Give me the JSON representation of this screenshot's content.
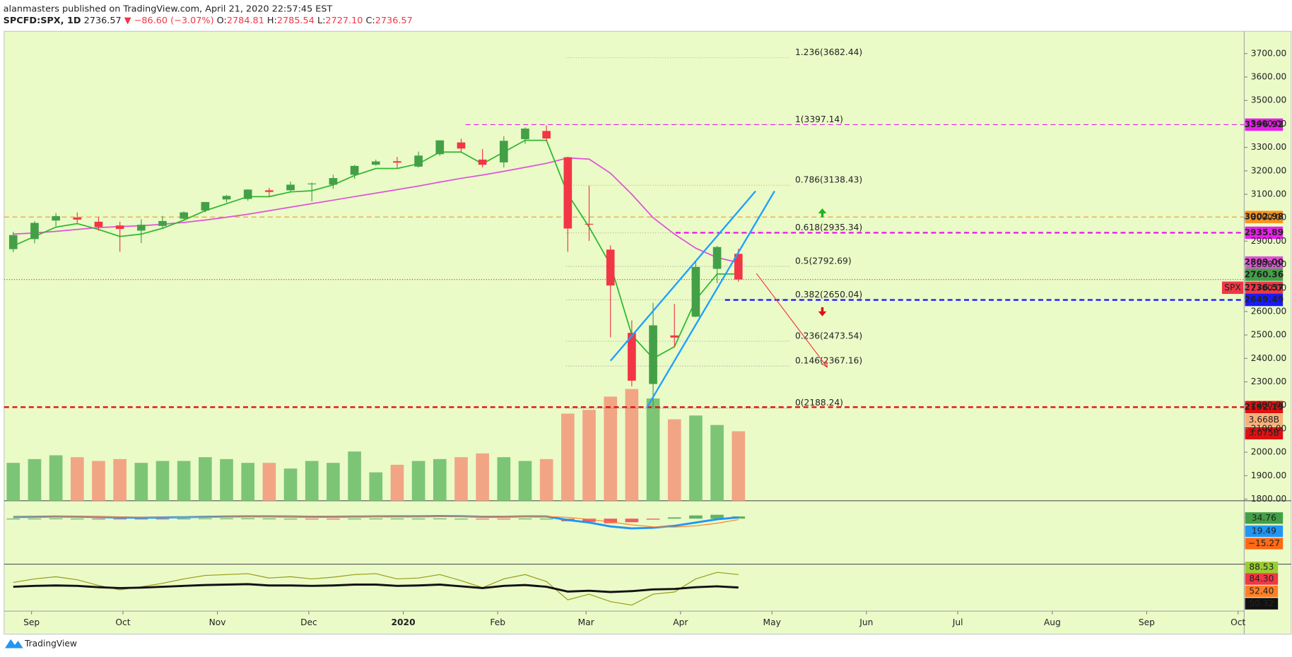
{
  "header": {
    "publisher": "alanmasters published on TradingView.com, April 21, 2020 22:57:45 EST",
    "symbol": "SPCFD:SPX, 1D",
    "last": "2736.57",
    "direction": "▼",
    "change": "−86.60 (−3.07%)",
    "ohlc": [
      {
        "key": "O:",
        "value": "2784.81"
      },
      {
        "key": "H:",
        "value": "2785.54"
      },
      {
        "key": "L:",
        "value": "2727.10"
      },
      {
        "key": "C:",
        "value": "2736.57"
      }
    ]
  },
  "footer": {
    "brand": "TradingView"
  },
  "chart_data": {
    "type": "candlestick",
    "x": [
      "2019-08-26",
      "2019-09-02",
      "2019-09-09",
      "2019-09-16",
      "2019-09-23",
      "2019-09-30",
      "2019-10-07",
      "2019-10-14",
      "2019-10-21",
      "2019-10-28",
      "2019-11-04",
      "2019-11-11",
      "2019-11-18",
      "2019-11-25",
      "2019-12-02",
      "2019-12-09",
      "2019-12-16",
      "2019-12-23",
      "2019-12-30",
      "2020-01-06",
      "2020-01-13",
      "2020-01-20",
      "2020-01-27",
      "2020-02-03",
      "2020-02-10",
      "2020-02-17",
      "2020-02-24",
      "2020-03-02",
      "2020-03-09",
      "2020-03-16",
      "2020-03-23",
      "2020-03-30",
      "2020-04-06",
      "2020-04-13",
      "2020-04-20"
    ],
    "open": [
      2866,
      2909,
      2988,
      3001,
      2983,
      2967,
      2945,
      2965,
      2996,
      3031,
      3078,
      3080,
      3117,
      3117,
      3143,
      3141,
      3183,
      3226,
      3241,
      3218,
      3271,
      3321,
      3248,
      3236,
      3335,
      3370,
      3258,
      2974,
      2864,
      2509,
      2291,
      2498,
      2578,
      2782,
      2846
    ],
    "high": [
      2940,
      2985,
      3020,
      3022,
      3002,
      2983,
      2993,
      3008,
      3027,
      3066,
      3097,
      3121,
      3127,
      3154,
      3150,
      3183,
      3225,
      3248,
      3259,
      3282,
      3329,
      3337,
      3293,
      3347,
      3385,
      3394,
      3260,
      3137,
      2882,
      2562,
      2637,
      2632,
      2818,
      2880,
      2868
    ],
    "low": [
      2853,
      2891,
      2964,
      2978,
      2945,
      2855,
      2892,
      2952,
      2988,
      3023,
      3065,
      3072,
      3091,
      3108,
      3070,
      3123,
      3166,
      3222,
      3213,
      3214,
      3264,
      3280,
      3214,
      3214,
      3315,
      3327,
      2855,
      2901,
      2490,
      2281,
      2192,
      2447,
      2576,
      2721,
      2727
    ],
    "close": [
      2926,
      2978,
      3007,
      2992,
      2961,
      2952,
      2970,
      2986,
      3023,
      3067,
      3093,
      3120,
      3110,
      3141,
      3146,
      3169,
      3221,
      3240,
      3235,
      3265,
      3330,
      3295,
      3226,
      3328,
      3380,
      3338,
      2954,
      2972,
      2711,
      2305,
      2541,
      2489,
      2790,
      2875,
      2736.57
    ],
    "up_color": "#43a047",
    "down_color": "#f23645",
    "volume": [
      2.0,
      2.2,
      2.4,
      2.3,
      2.1,
      2.2,
      2.0,
      2.1,
      2.1,
      2.3,
      2.2,
      2.0,
      2.0,
      1.7,
      2.1,
      2.0,
      2.6,
      1.5,
      1.9,
      2.1,
      2.2,
      2.3,
      2.5,
      2.3,
      2.1,
      2.2,
      4.6,
      4.8,
      5.5,
      5.9,
      5.4,
      4.3,
      4.5,
      4.0,
      3.668
    ],
    "volume_up_color": "#7cc576",
    "volume_down_color": "#f2a584",
    "overlays": [
      {
        "color": "#e052d6",
        "values": [
          2930,
          2935,
          2942,
          2950,
          2958,
          2962,
          2966,
          2972,
          2980,
          2990,
          3002,
          3015,
          3030,
          3045,
          3060,
          3075,
          3090,
          3105,
          3120,
          3135,
          3152,
          3168,
          3182,
          3198,
          3215,
          3232,
          3255,
          3250,
          3190,
          3100,
          3000,
          2930,
          2870,
          2830,
          2809
        ]
      },
      {
        "color": "#2eb82e",
        "values": [
          2880,
          2920,
          2960,
          2975,
          2950,
          2920,
          2930,
          2955,
          2990,
          3030,
          3060,
          3090,
          3090,
          3110,
          3115,
          3140,
          3180,
          3210,
          3210,
          3230,
          3280,
          3280,
          3230,
          3280,
          3330,
          3330,
          3100,
          2960,
          2800,
          2500,
          2400,
          2450,
          2650,
          2760,
          2760.36
        ]
      }
    ],
    "xlim": [
      "2019-08-23",
      "2020-10-03"
    ],
    "xticks": [
      {
        "value": "2019-09-01",
        "label": "Sep"
      },
      {
        "value": "2019-10-01",
        "label": "Oct"
      },
      {
        "value": "2019-11-01",
        "label": "Nov"
      },
      {
        "value": "2019-12-01",
        "label": "Dec"
      },
      {
        "value": "2020-01-01",
        "label": "2020"
      },
      {
        "value": "2020-02-01",
        "label": "Feb"
      },
      {
        "value": "2020-03-01",
        "label": "Mar"
      },
      {
        "value": "2020-04-01",
        "label": "Apr"
      },
      {
        "value": "2020-05-01",
        "label": "May"
      },
      {
        "value": "2020-06-01",
        "label": "Jun"
      },
      {
        "value": "2020-07-01",
        "label": "Jul"
      },
      {
        "value": "2020-08-01",
        "label": "Aug"
      },
      {
        "value": "2020-09-01",
        "label": "Sep"
      },
      {
        "value": "2020-10-01",
        "label": "Oct"
      }
    ],
    "ylim": [
      1793,
      3795
    ],
    "yticks": [
      {
        "value": 1800,
        "label": "1800.00"
      },
      {
        "value": 1900,
        "label": "1900.00"
      },
      {
        "value": 2000,
        "label": "2000.00"
      },
      {
        "value": 2100,
        "label": "2100.00"
      },
      {
        "value": 2200,
        "label": "2200.00"
      },
      {
        "value": 2300,
        "label": "2300.00"
      },
      {
        "value": 2400,
        "label": "2400.00"
      },
      {
        "value": 2500,
        "label": "2500.00"
      },
      {
        "value": 2600,
        "label": "2600.00"
      },
      {
        "value": 2700,
        "label": "2700.00"
      },
      {
        "value": 2800,
        "label": "2800.00"
      },
      {
        "value": 2900,
        "label": "2900.00"
      },
      {
        "value": 3000,
        "label": "3000.00"
      },
      {
        "value": 3100,
        "label": "3100.00"
      },
      {
        "value": 3200,
        "label": "3200.00"
      },
      {
        "value": 3300,
        "label": "3300.00"
      },
      {
        "value": 3400,
        "label": "3400.00"
      },
      {
        "value": 3500,
        "label": "3500.00"
      },
      {
        "value": 3600,
        "label": "3600.00"
      },
      {
        "value": 3700,
        "label": "3700.00"
      }
    ],
    "grid": false,
    "fib": [
      {
        "label": "1.236(3682.44)",
        "value": 3682.44,
        "color": "#b0b0a0"
      },
      {
        "label": "1(3397.14)",
        "value": 3397.14,
        "color": "#b0b0a0"
      },
      {
        "label": "0.786(3138.43)",
        "value": 3138.43,
        "color": "#f5a623"
      },
      {
        "label": "0.618(2935.34)",
        "value": 2935.34,
        "color": "#a0a090"
      },
      {
        "label": "0.5(2792.69)",
        "value": 2792.69,
        "color": "#a0a090"
      },
      {
        "label": "0.382(2650.04)",
        "value": 2650.04,
        "color": "#a0a090"
      },
      {
        "label": "0.236(2473.54)",
        "value": 2473.54,
        "color": "#a0a090"
      },
      {
        "label": "0.146(2367.16)",
        "value": 2367.16,
        "color": "#a0a090"
      },
      {
        "label": "0(2188.24)",
        "value": 2188.24,
        "color": "#707060"
      }
    ],
    "price_tags": [
      {
        "value": 3396.92,
        "label": "3396.92",
        "color": "#e91ee9",
        "line": "dashed"
      },
      {
        "value": 3002.98,
        "label": "3002.98",
        "color": "#f7931e",
        "line": "dashed"
      },
      {
        "value": 2935.89,
        "label": "2935.89",
        "color": "#e91ee9",
        "line": "dashed"
      },
      {
        "value": 2809,
        "label": "2809.00",
        "color": "#e052d6",
        "line": "none"
      },
      {
        "value": 2760.36,
        "label": "2760.36",
        "color": "#43a047",
        "line": "none"
      },
      {
        "value": 2736.57,
        "label": "2736.57",
        "color": "#f23645",
        "line": "dotted"
      },
      {
        "value": 2649.49,
        "label": "2649.49",
        "color": "#1a1aff",
        "line": "dashed"
      },
      {
        "value": 2192.19,
        "label": "2192.19",
        "color": "#e01010",
        "line": "dashed"
      }
    ],
    "symbol_tag": "SPX",
    "volume_tags": [
      {
        "value": 3.668,
        "label": "3.668B",
        "color": "#f7b07a"
      },
      {
        "value": 3.075,
        "label": "3.075B",
        "color": "#e01010"
      }
    ],
    "macd": {
      "ylim": [
        -700,
        250
      ],
      "macd": [
        25,
        28,
        32,
        30,
        25,
        18,
        15,
        18,
        22,
        28,
        32,
        35,
        35,
        33,
        30,
        30,
        32,
        35,
        36,
        36,
        40,
        38,
        30,
        30,
        35,
        34,
        -20,
        -60,
        -120,
        -150,
        -140,
        -110,
        -60,
        -10,
        19.49
      ],
      "signal": [
        24,
        26,
        28,
        29,
        28,
        25,
        22,
        20,
        20,
        23,
        27,
        30,
        32,
        33,
        32,
        31,
        31,
        33,
        34,
        35,
        37,
        38,
        35,
        33,
        33,
        34,
        20,
        -10,
        -50,
        -95,
        -125,
        -130,
        -110,
        -70,
        -15.27
      ],
      "macd_color": "#2196f3",
      "signal_color": "#ff7f27",
      "tags": [
        {
          "value": 34.76,
          "label": "34.76",
          "color": "#43a047"
        },
        {
          "value": 19.49,
          "label": "19.49",
          "color": "#2196f3"
        },
        {
          "value": -15.27,
          "label": "−15.27",
          "color": "#ff6a13"
        }
      ]
    },
    "oscillator": {
      "ylim": [
        0,
        100
      ],
      "fast": [
        62,
        70,
        75,
        68,
        55,
        45,
        52,
        60,
        70,
        78,
        80,
        82,
        72,
        75,
        70,
        74,
        80,
        82,
        70,
        72,
        80,
        66,
        50,
        70,
        80,
        64,
        22,
        35,
        18,
        10,
        35,
        40,
        70,
        85,
        80
      ],
      "slow": [
        52,
        54,
        55,
        54,
        51,
        49,
        50,
        52,
        54,
        56,
        57,
        58,
        55,
        55,
        54,
        55,
        57,
        57,
        54,
        55,
        57,
        53,
        49,
        54,
        56,
        52,
        41,
        43,
        40,
        42,
        46,
        47,
        51,
        53,
        50.32
      ],
      "fast_color": "#9a9a10",
      "slow_color": "#111111",
      "tags": [
        {
          "value": 88.53,
          "label": "88.53",
          "color": "#9acd32"
        },
        {
          "value": 84.3,
          "label": "84.30",
          "color": "#f23645"
        },
        {
          "value": 52.4,
          "label": "52.40",
          "color": "#ff7f27"
        },
        {
          "value": 50.32,
          "label": "50.32",
          "color": "#111111"
        }
      ]
    }
  }
}
